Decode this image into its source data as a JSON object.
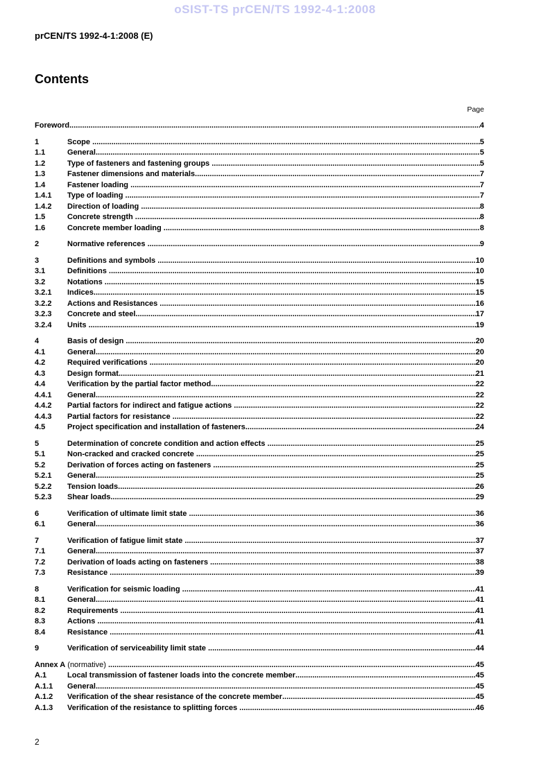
{
  "watermark": "oSIST-TS prCEN/TS 1992-4-1:2008",
  "header": {
    "title": "prCEN/TS 1992-4-1:2008 (E)"
  },
  "contents": {
    "title": "Contents",
    "page_label": "Page",
    "groups": [
      {
        "entries": [
          {
            "num": "",
            "title": "Foreword",
            "page": "4"
          }
        ]
      },
      {
        "entries": [
          {
            "num": "1",
            "title": "Scope ",
            "page": "5"
          },
          {
            "num": "1.1",
            "title": "General",
            "page": "5"
          },
          {
            "num": "1.2",
            "title": "Type of fasteners and fastening groups ",
            "page": "5"
          },
          {
            "num": "1.3",
            "title": "Fastener dimensions and materials",
            "page": "7"
          },
          {
            "num": "1.4",
            "title": "Fastener loading ",
            "page": "7"
          },
          {
            "num": "1.4.1",
            "title": "Type of loading ",
            "page": "7"
          },
          {
            "num": "1.4.2",
            "title": "Direction of loading ",
            "page": "8"
          },
          {
            "num": "1.5",
            "title": "Concrete strength ",
            "page": "8"
          },
          {
            "num": "1.6",
            "title": "Concrete member loading ",
            "page": "8"
          }
        ]
      },
      {
        "entries": [
          {
            "num": "2",
            "title": "Normative references ",
            "page": "9"
          }
        ]
      },
      {
        "entries": [
          {
            "num": "3",
            "title": "Definitions and symbols ",
            "page": "10"
          },
          {
            "num": "3.1",
            "title": "Definitions ",
            "page": "10"
          },
          {
            "num": "3.2",
            "title": "Notations ",
            "page": "15"
          },
          {
            "num": "3.2.1",
            "title": "Indices",
            "page": "15"
          },
          {
            "num": "3.2.2",
            "title": "Actions and Resistances ",
            "page": "16"
          },
          {
            "num": "3.2.3",
            "title": "Concrete and steel",
            "page": "17"
          },
          {
            "num": "3.2.4",
            "title": "Units ",
            "page": "19"
          }
        ]
      },
      {
        "entries": [
          {
            "num": "4",
            "title": "Basis of design ",
            "page": "20"
          },
          {
            "num": "4.1",
            "title": "General",
            "page": "20"
          },
          {
            "num": "4.2",
            "title": "Required verifications ",
            "page": "20"
          },
          {
            "num": "4.3",
            "title": "Design format",
            "page": "21"
          },
          {
            "num": "4.4",
            "title": "Verification by the partial factor method",
            "page": "22"
          },
          {
            "num": "4.4.1",
            "title": "General",
            "page": "22"
          },
          {
            "num": "4.4.2",
            "title": "Partial factors for indirect and fatigue actions ",
            "page": "22"
          },
          {
            "num": "4.4.3",
            "title": "Partial factors for resistance ",
            "page": "22"
          },
          {
            "num": "4.5",
            "title": "Project specification and installation of fasteners",
            "page": "24"
          }
        ]
      },
      {
        "entries": [
          {
            "num": "5",
            "title": "Determination of concrete condition and action effects ",
            "page": "25"
          },
          {
            "num": "5.1",
            "title": "Non-cracked and cracked concrete ",
            "page": "25"
          },
          {
            "num": "5.2",
            "title": "Derivation of forces acting on fasteners ",
            "page": "25"
          },
          {
            "num": "5.2.1",
            "title": "General",
            "page": "25"
          },
          {
            "num": "5.2.2",
            "title": "Tension loads",
            "page": "26"
          },
          {
            "num": "5.2.3",
            "title": "Shear loads",
            "page": "29"
          }
        ]
      },
      {
        "entries": [
          {
            "num": "6",
            "title": "Verification of ultimate limit state ",
            "page": "36"
          },
          {
            "num": "6.1",
            "title": "General",
            "page": "36"
          }
        ]
      },
      {
        "entries": [
          {
            "num": "7",
            "title": "Verification of fatigue limit state ",
            "page": "37"
          },
          {
            "num": "7.1",
            "title": "General",
            "page": "37"
          },
          {
            "num": "7.2",
            "title": "Derivation of loads acting on fasteners ",
            "page": "38"
          },
          {
            "num": "7.3",
            "title": "Resistance ",
            "page": "39"
          }
        ]
      },
      {
        "entries": [
          {
            "num": "8",
            "title": "Verification for seismic loading ",
            "page": "41"
          },
          {
            "num": "8.1",
            "title": "General",
            "page": "41"
          },
          {
            "num": "8.2",
            "title": "Requirements ",
            "page": "41"
          },
          {
            "num": "8.3",
            "title": "Actions ",
            "page": "41"
          },
          {
            "num": "8.4",
            "title": "Resistance ",
            "page": "41"
          }
        ]
      },
      {
        "entries": [
          {
            "num": "9",
            "title": "Verification of serviceability limit state ",
            "page": "44"
          }
        ]
      },
      {
        "entries": [
          {
            "num": "",
            "title": "Annex A",
            "suffix": " (normative) ",
            "page": "45"
          },
          {
            "num": "A.1",
            "title": "Local transmission of fastener loads into the concrete member",
            "page": "45"
          },
          {
            "num": "A.1.1",
            "title": "General",
            "page": "45"
          },
          {
            "num": "A.1.2",
            "title": "Verification of the shear resistance of the concrete member",
            "page": "45"
          },
          {
            "num": "A.1.3",
            "title": "Verification of the resistance to splitting forces ",
            "page": "46"
          }
        ]
      }
    ]
  },
  "footer": {
    "page_number": "2"
  }
}
